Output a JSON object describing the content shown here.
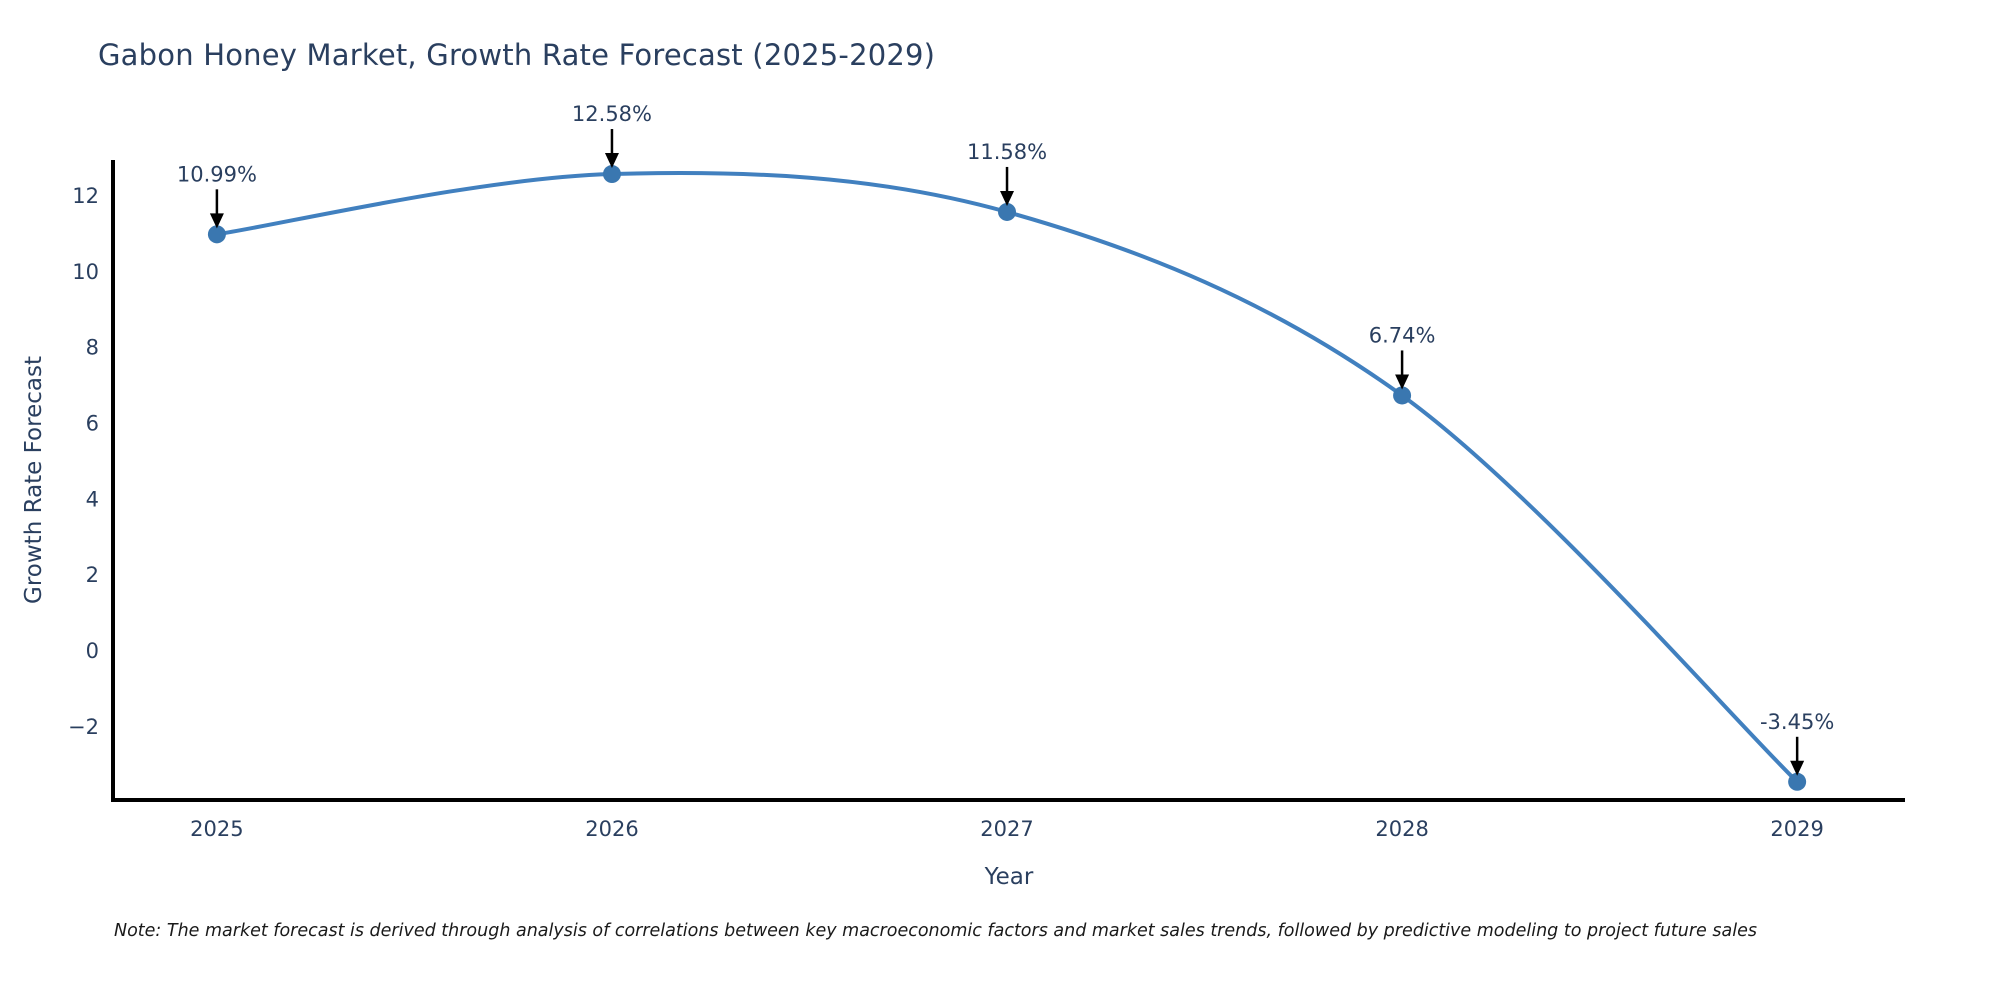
{
  "note": "Note: The market forecast is derived through analysis of correlations between key macroeconomic factors and market sales trends, followed by predictive modeling to project future sales",
  "chart_data": {
    "type": "line",
    "title": "Gabon Honey Market, Growth Rate Forecast (2025-2029)",
    "xlabel": "Year",
    "ylabel": "Growth Rate Forecast",
    "x": [
      2025,
      2026,
      2027,
      2028,
      2029
    ],
    "values": [
      10.99,
      12.58,
      11.58,
      6.74,
      -3.45
    ],
    "point_labels": [
      "10.99%",
      "12.58%",
      "11.58%",
      "6.74%",
      "-3.45%"
    ],
    "xticks": [
      "2025",
      "2026",
      "2027",
      "2028",
      "2029"
    ],
    "yticks": [
      -2,
      0,
      2,
      4,
      6,
      8,
      10,
      12
    ],
    "xlim": [
      2024.737,
      2029.273
    ],
    "ylim": [
      -3.93,
      12.95
    ],
    "line_shape": "spline",
    "grid": false,
    "legend": false,
    "colors": {
      "line": "#4180bf",
      "marker": "#3a77b0",
      "axis": "#000000",
      "text": "#2a3f5f",
      "annotation_arrow": "#000000"
    }
  }
}
